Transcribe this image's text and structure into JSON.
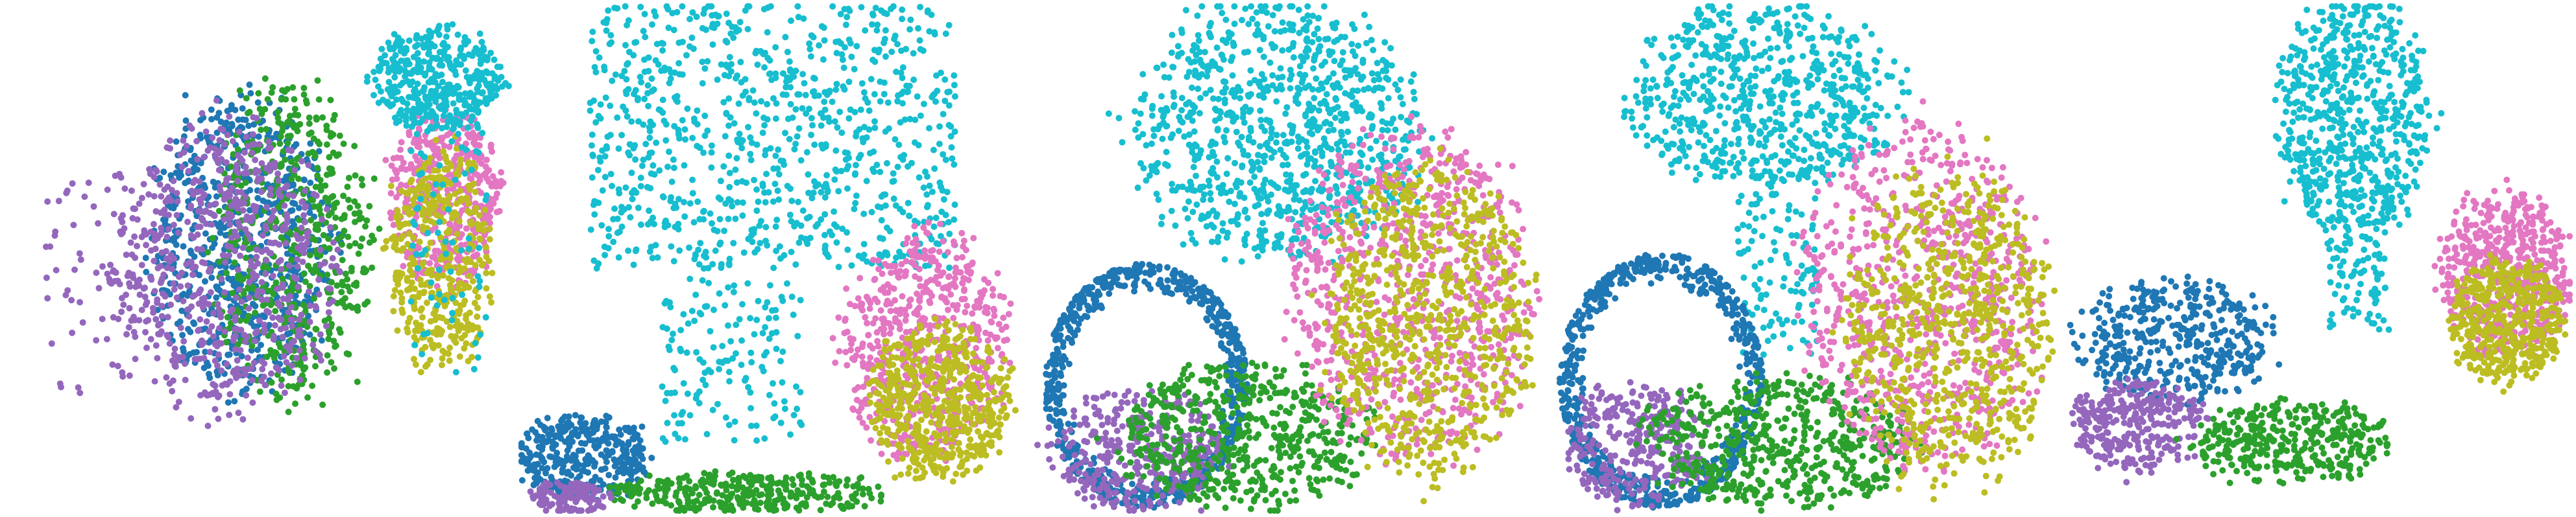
{
  "chart_data": [
    {
      "type": "scatter",
      "title": "",
      "xlabel": "",
      "ylabel": "",
      "grid": false,
      "legend": "none",
      "series": [
        {
          "color": "#1f77b4",
          "blobs": [
            {
              "cx": 0.47,
              "cy": 0.47,
              "rx": 0.18,
              "ry": 0.28,
              "n": 700,
              "style": "fill"
            }
          ]
        },
        {
          "color": "#2ca02c",
          "blobs": [
            {
              "cx": 0.57,
              "cy": 0.47,
              "rx": 0.16,
              "ry": 0.3,
              "n": 550,
              "style": "fill"
            }
          ]
        },
        {
          "color": "#9467bd",
          "blobs": [
            {
              "cx": 0.43,
              "cy": 0.52,
              "rx": 0.22,
              "ry": 0.28,
              "n": 650,
              "style": "fill"
            },
            {
              "cx": 0.2,
              "cy": 0.55,
              "rx": 0.12,
              "ry": 0.22,
              "n": 60,
              "style": "sparse"
            }
          ]
        },
        {
          "color": "#e377c2",
          "blobs": [
            {
              "cx": 0.87,
              "cy": 0.38,
              "rx": 0.11,
              "ry": 0.17,
              "n": 450,
              "style": "fill"
            }
          ]
        },
        {
          "color": "#bcbd22",
          "blobs": [
            {
              "cx": 0.86,
              "cy": 0.5,
              "rx": 0.1,
              "ry": 0.22,
              "n": 420,
              "style": "fill"
            }
          ]
        },
        {
          "color": "#17becf",
          "blobs": [
            {
              "cx": 0.85,
              "cy": 0.15,
              "rx": 0.13,
              "ry": 0.1,
              "n": 400,
              "style": "fill"
            },
            {
              "cx": 0.88,
              "cy": 0.45,
              "rx": 0.08,
              "ry": 0.28,
              "n": 80,
              "style": "sparse"
            }
          ]
        }
      ]
    },
    {
      "type": "scatter",
      "title": "",
      "xlabel": "",
      "ylabel": "",
      "grid": false,
      "legend": "none",
      "series": [
        {
          "color": "#17becf",
          "blobs": [
            {
              "cx": 0.5,
              "cy": 0.26,
              "rx": 0.36,
              "ry": 0.26,
              "n": 900,
              "style": "sparse"
            },
            {
              "cx": 0.42,
              "cy": 0.7,
              "rx": 0.14,
              "ry": 0.16,
              "n": 150,
              "style": "sparse"
            }
          ]
        },
        {
          "color": "#e377c2",
          "blobs": [
            {
              "cx": 0.8,
              "cy": 0.67,
              "rx": 0.16,
              "ry": 0.22,
              "n": 600,
              "style": "fill"
            }
          ]
        },
        {
          "color": "#bcbd22",
          "blobs": [
            {
              "cx": 0.83,
              "cy": 0.78,
              "rx": 0.14,
              "ry": 0.15,
              "n": 550,
              "style": "fill"
            }
          ]
        },
        {
          "color": "#1f77b4",
          "blobs": [
            {
              "cx": 0.13,
              "cy": 0.89,
              "rx": 0.13,
              "ry": 0.08,
              "n": 350,
              "style": "fill"
            }
          ]
        },
        {
          "color": "#2ca02c",
          "blobs": [
            {
              "cx": 0.45,
              "cy": 0.96,
              "rx": 0.28,
              "ry": 0.04,
              "n": 320,
              "style": "fill"
            }
          ]
        },
        {
          "color": "#9467bd",
          "blobs": [
            {
              "cx": 0.1,
              "cy": 0.97,
              "rx": 0.08,
              "ry": 0.03,
              "n": 120,
              "style": "fill"
            }
          ]
        }
      ]
    },
    {
      "type": "scatter",
      "title": "",
      "xlabel": "",
      "ylabel": "",
      "grid": false,
      "legend": "none",
      "series": [
        {
          "color": "#17becf",
          "blobs": [
            {
              "cx": 0.48,
              "cy": 0.25,
              "rx": 0.28,
              "ry": 0.25,
              "n": 950,
              "style": "fill"
            }
          ]
        },
        {
          "color": "#1f77b4",
          "blobs": [
            {
              "cx": 0.22,
              "cy": 0.75,
              "rx": 0.2,
              "ry": 0.24,
              "n": 700,
              "style": "ring"
            }
          ]
        },
        {
          "color": "#9467bd",
          "blobs": [
            {
              "cx": 0.2,
              "cy": 0.88,
              "rx": 0.17,
              "ry": 0.12,
              "n": 350,
              "style": "fill"
            }
          ]
        },
        {
          "color": "#2ca02c",
          "blobs": [
            {
              "cx": 0.42,
              "cy": 0.85,
              "rx": 0.24,
              "ry": 0.14,
              "n": 550,
              "style": "fill"
            }
          ]
        },
        {
          "color": "#e377c2",
          "blobs": [
            {
              "cx": 0.74,
              "cy": 0.57,
              "rx": 0.23,
              "ry": 0.33,
              "n": 800,
              "style": "fill"
            }
          ]
        },
        {
          "color": "#bcbd22",
          "blobs": [
            {
              "cx": 0.78,
              "cy": 0.62,
              "rx": 0.2,
              "ry": 0.3,
              "n": 750,
              "style": "fill"
            }
          ]
        }
      ]
    },
    {
      "type": "scatter",
      "title": "",
      "xlabel": "",
      "ylabel": "",
      "grid": false,
      "legend": "none",
      "series": [
        {
          "color": "#17becf",
          "blobs": [
            {
              "cx": 0.42,
              "cy": 0.18,
              "rx": 0.27,
              "ry": 0.18,
              "n": 700,
              "style": "fill"
            },
            {
              "cx": 0.45,
              "cy": 0.53,
              "rx": 0.08,
              "ry": 0.16,
              "n": 110,
              "style": "sparse"
            }
          ]
        },
        {
          "color": "#1f77b4",
          "blobs": [
            {
              "cx": 0.22,
              "cy": 0.74,
              "rx": 0.2,
              "ry": 0.25,
              "n": 650,
              "style": "ring"
            }
          ]
        },
        {
          "color": "#9467bd",
          "blobs": [
            {
              "cx": 0.17,
              "cy": 0.87,
              "rx": 0.14,
              "ry": 0.12,
              "n": 320,
              "style": "fill"
            }
          ]
        },
        {
          "color": "#2ca02c",
          "blobs": [
            {
              "cx": 0.46,
              "cy": 0.86,
              "rx": 0.26,
              "ry": 0.13,
              "n": 550,
              "style": "fill"
            }
          ]
        },
        {
          "color": "#e377c2",
          "blobs": [
            {
              "cx": 0.73,
              "cy": 0.57,
              "rx": 0.23,
              "ry": 0.33,
              "n": 750,
              "style": "fill"
            }
          ]
        },
        {
          "color": "#bcbd22",
          "blobs": [
            {
              "cx": 0.79,
              "cy": 0.63,
              "rx": 0.2,
              "ry": 0.3,
              "n": 700,
              "style": "fill"
            }
          ]
        }
      ]
    },
    {
      "type": "scatter",
      "title": "",
      "xlabel": "",
      "ylabel": "",
      "grid": false,
      "legend": "none",
      "series": [
        {
          "color": "#17becf",
          "blobs": [
            {
              "cx": 0.57,
              "cy": 0.22,
              "rx": 0.15,
              "ry": 0.24,
              "n": 650,
              "style": "fill"
            },
            {
              "cx": 0.58,
              "cy": 0.5,
              "rx": 0.06,
              "ry": 0.14,
              "n": 90,
              "style": "sparse"
            }
          ]
        },
        {
          "color": "#1f77b4",
          "blobs": [
            {
              "cx": 0.22,
              "cy": 0.66,
              "rx": 0.19,
              "ry": 0.12,
              "n": 420,
              "style": "fill"
            }
          ]
        },
        {
          "color": "#9467bd",
          "blobs": [
            {
              "cx": 0.14,
              "cy": 0.83,
              "rx": 0.13,
              "ry": 0.09,
              "n": 280,
              "style": "fill"
            }
          ]
        },
        {
          "color": "#2ca02c",
          "blobs": [
            {
              "cx": 0.45,
              "cy": 0.86,
              "rx": 0.2,
              "ry": 0.08,
              "n": 360,
              "style": "fill"
            }
          ]
        },
        {
          "color": "#e377c2",
          "blobs": [
            {
              "cx": 0.87,
              "cy": 0.53,
              "rx": 0.13,
              "ry": 0.16,
              "n": 520,
              "style": "fill"
            }
          ]
        },
        {
          "color": "#bcbd22",
          "blobs": [
            {
              "cx": 0.87,
              "cy": 0.62,
              "rx": 0.11,
              "ry": 0.12,
              "n": 480,
              "style": "fill"
            }
          ]
        }
      ]
    }
  ]
}
